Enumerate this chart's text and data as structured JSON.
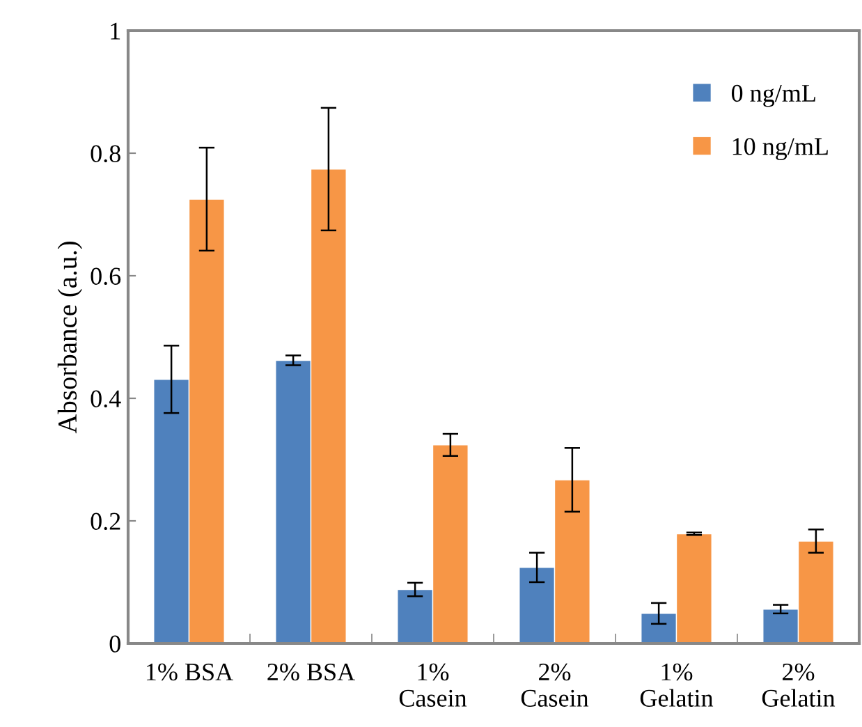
{
  "chart_data": {
    "type": "bar",
    "ylabel": "Absorbance (a.u.)",
    "categories": [
      "1% BSA",
      "2% BSA",
      "1%\nCasein",
      "2%\nCasein",
      "1%\nGelatin",
      "2%\nGelatin"
    ],
    "series": [
      {
        "name": "0 ng/mL",
        "color": "#4f81bd",
        "values": [
          0.431,
          0.462,
          0.088,
          0.124,
          0.049,
          0.056
        ],
        "errors": [
          0.055,
          0.008,
          0.011,
          0.024,
          0.017,
          0.007
        ]
      },
      {
        "name": "10 ng/mL",
        "color": "#f79646",
        "values": [
          0.725,
          0.774,
          0.324,
          0.267,
          0.179,
          0.167
        ],
        "errors": [
          0.084,
          0.1,
          0.018,
          0.052,
          0.002,
          0.019
        ]
      }
    ],
    "ylim": [
      0,
      1
    ],
    "yticks": [
      0,
      0.2,
      0.4,
      0.6,
      0.8,
      1
    ],
    "grid": false,
    "legend": "top right"
  }
}
